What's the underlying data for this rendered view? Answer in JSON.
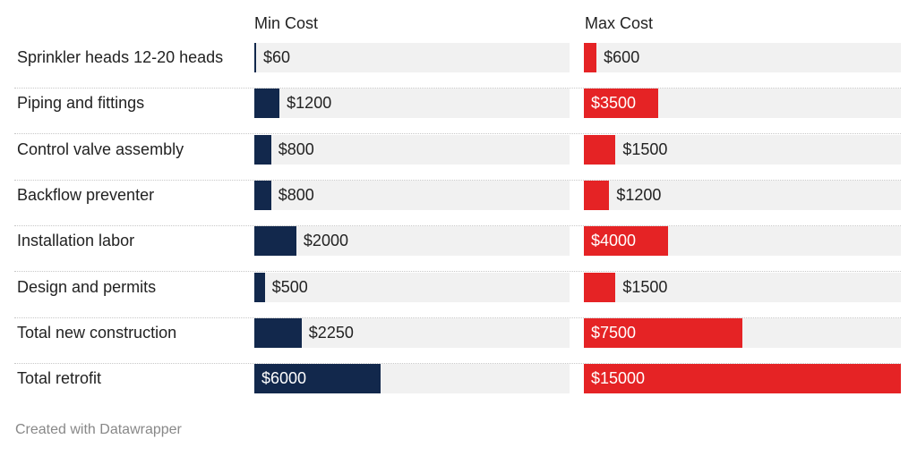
{
  "chart_data": {
    "type": "bar",
    "columns": [
      "Min Cost",
      "Max Cost"
    ],
    "categories": [
      "Sprinkler heads 12-20 heads",
      "Piping and fittings",
      "Control valve assembly",
      "Backflow preventer",
      "Installation labor",
      "Design and permits",
      "Total new construction",
      "Total retrofit"
    ],
    "series": [
      {
        "name": "Min Cost",
        "color": "#12284c",
        "values": [
          60,
          1200,
          800,
          800,
          2000,
          500,
          2250,
          6000
        ],
        "labels": [
          "$60",
          "$1200",
          "$800",
          "$800",
          "$2000",
          "$500",
          "$2250",
          "$6000"
        ],
        "xlim": [
          0,
          15000
        ]
      },
      {
        "name": "Max Cost",
        "color": "#e52325",
        "values": [
          600,
          3500,
          1500,
          1200,
          4000,
          1500,
          7500,
          15000
        ],
        "labels": [
          "$600",
          "$3500",
          "$1500",
          "$1200",
          "$4000",
          "$1500",
          "$7500",
          "$15000"
        ],
        "xlim": [
          0,
          15000
        ]
      }
    ],
    "track_color": "#f1f1f1",
    "grid": false
  },
  "footer": "Created with Datawrapper"
}
